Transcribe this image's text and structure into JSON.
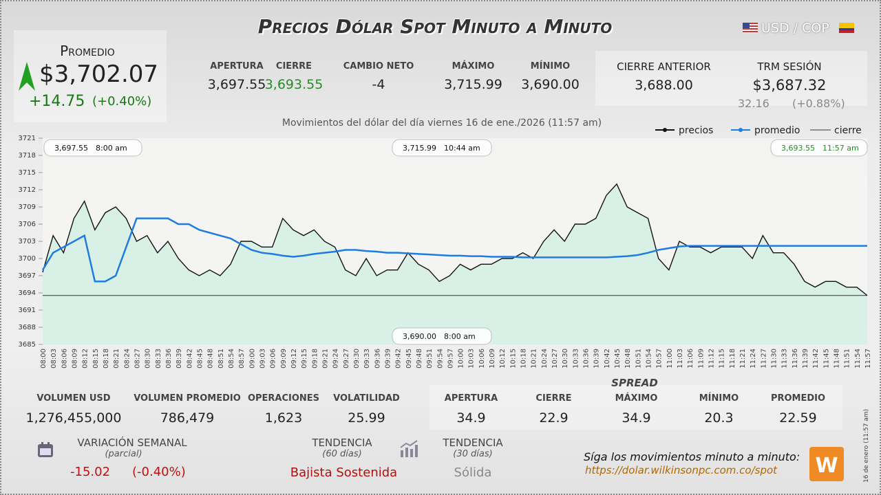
{
  "header": {
    "title": "Precios Dólar Spot Minuto a Minuto",
    "pair": "USD / COP"
  },
  "promedio": {
    "label": "Promedio",
    "value": "$3,702.07",
    "change": "+14.75",
    "pct": "(+0.40%)"
  },
  "stats": [
    {
      "label": "APERTURA",
      "value": "3,697.55"
    },
    {
      "label": "CIERRE",
      "value": "3,693.55"
    },
    {
      "label": "CAMBIO NETO",
      "value": "-4"
    },
    {
      "label": "MÁXIMO",
      "value": "3,715.99"
    },
    {
      "label": "MÍNIMO",
      "value": "3,690.00"
    }
  ],
  "cierre_anterior": {
    "label": "CIERRE ANTERIOR",
    "value": "3,688.00"
  },
  "trm": {
    "label": "TRM SESIÓN",
    "value": "$3,687.32",
    "change": "32.16",
    "pct": "(+0.88%)"
  },
  "chart_data": {
    "type": "line",
    "title": "Movimientos del dólar del día viernes 16 de ene./2026 (11:57 am)",
    "categories": [
      "08:00",
      "08:03",
      "08:06",
      "08:09",
      "08:12",
      "08:15",
      "08:18",
      "08:21",
      "08:24",
      "08:27",
      "08:30",
      "08:33",
      "08:36",
      "08:39",
      "08:42",
      "08:45",
      "08:48",
      "08:51",
      "08:54",
      "08:57",
      "09:00",
      "09:03",
      "09:06",
      "09:09",
      "09:12",
      "09:15",
      "09:18",
      "09:21",
      "09:24",
      "09:27",
      "09:30",
      "09:33",
      "09:36",
      "09:39",
      "09:42",
      "09:45",
      "09:48",
      "09:51",
      "09:54",
      "09:57",
      "10:00",
      "10:03",
      "10:06",
      "10:09",
      "10:12",
      "10:15",
      "10:18",
      "10:21",
      "10:24",
      "10:27",
      "10:30",
      "10:33",
      "10:36",
      "10:39",
      "10:42",
      "10:45",
      "10:48",
      "10:51",
      "10:54",
      "10:57",
      "11:00",
      "11:03",
      "11:06",
      "11:09",
      "11:12",
      "11:15",
      "11:18",
      "11:21",
      "11:24",
      "11:27",
      "11:30",
      "11:33",
      "11:36",
      "11:39",
      "11:42",
      "11:45",
      "11:48",
      "11:51",
      "11:54",
      "11:57"
    ],
    "series": [
      {
        "name": "precios",
        "color": "#111111",
        "values": [
          3697.6,
          3704,
          3701,
          3707,
          3710,
          3705,
          3708,
          3709,
          3707,
          3703,
          3704,
          3701,
          3703,
          3700,
          3698,
          3697,
          3698,
          3697,
          3699,
          3703,
          3703,
          3702,
          3702,
          3707,
          3705,
          3704,
          3705,
          3703,
          3702,
          3698,
          3697,
          3700,
          3697,
          3698,
          3698,
          3701,
          3699,
          3698,
          3696,
          3697,
          3699,
          3698,
          3699,
          3699,
          3700,
          3700,
          3701,
          3700,
          3703,
          3705,
          3703,
          3706,
          3706,
          3707,
          3711,
          3713,
          3709,
          3708,
          3707,
          3700,
          3698,
          3703,
          3702,
          3702,
          3701,
          3702,
          3702,
          3702,
          3700,
          3704,
          3701,
          3701,
          3699,
          3696,
          3695,
          3696,
          3696,
          3695,
          3695,
          3693.55
        ]
      },
      {
        "name": "promedio",
        "color": "#1e7be0",
        "values": [
          3698,
          3701,
          3702,
          3703,
          3704,
          3696,
          3696,
          3697,
          3702,
          3707,
          3707,
          3707,
          3707,
          3706,
          3706,
          3705,
          3704.5,
          3704,
          3703.5,
          3702.5,
          3701.5,
          3701,
          3700.8,
          3700.5,
          3700.3,
          3700.5,
          3700.8,
          3701,
          3701.2,
          3701.5,
          3701.5,
          3701.3,
          3701.2,
          3701,
          3701,
          3700.9,
          3700.8,
          3700.7,
          3700.6,
          3700.5,
          3700.5,
          3700.4,
          3700.4,
          3700.3,
          3700.3,
          3700.3,
          3700.2,
          3700.2,
          3700.2,
          3700.2,
          3700.2,
          3700.2,
          3700.2,
          3700.2,
          3700.2,
          3700.3,
          3700.4,
          3700.6,
          3701,
          3701.5,
          3701.8,
          3702.1,
          3702.2,
          3702.2,
          3702.2,
          3702.2,
          3702.2,
          3702.2,
          3702.2,
          3702.2,
          3702.2,
          3702.2,
          3702.2,
          3702.2,
          3702.2,
          3702.2,
          3702.2,
          3702.2,
          3702.2,
          3702.2
        ]
      }
    ],
    "reference": {
      "name": "cierre",
      "value": 3693.55,
      "color": "#333333"
    },
    "annotations": [
      {
        "price": "3,697.55",
        "time": "8:00 am"
      },
      {
        "price": "3,715.99",
        "time": "10:44 am"
      },
      {
        "price": "3,693.55",
        "time": "11:57 am"
      },
      {
        "price": "3,690.00",
        "time": "8:00 am"
      }
    ],
    "ylim": [
      3685,
      3721
    ],
    "yticks": [
      3685,
      3688,
      3691,
      3694,
      3697,
      3700,
      3703,
      3706,
      3709,
      3712,
      3715,
      3718,
      3721
    ],
    "grid": false
  },
  "volume": [
    {
      "label": "VOLUMEN USD",
      "value": "1,276,455,000"
    },
    {
      "label": "VOLUMEN PROMEDIO",
      "value": "786,479"
    },
    {
      "label": "OPERACIONES",
      "value": "1,623"
    },
    {
      "label": "VOLATILIDAD",
      "value": "25.99"
    }
  ],
  "spread": {
    "title": "SPREAD",
    "items": [
      {
        "label": "APERTURA",
        "value": "34.9"
      },
      {
        "label": "CIERRE",
        "value": "22.9"
      },
      {
        "label": "MÁXIMO",
        "value": "34.9"
      },
      {
        "label": "MÍNIMO",
        "value": "20.3"
      },
      {
        "label": "PROMEDIO",
        "value": "22.59"
      }
    ]
  },
  "weekly": {
    "label": "VARIACIÓN SEMANAL",
    "sub": "(parcial)",
    "value": "-15.02",
    "pct": "(-0.40%)"
  },
  "trend60": {
    "label": "TENDENCIA",
    "sub": "(60 días)",
    "value": "Bajista Sostenida"
  },
  "trend30": {
    "label": "TENDENCIA",
    "sub": "(30 días)",
    "value": "Sólida"
  },
  "cta": {
    "text": "Síga los movimientos minuto a minuto:",
    "url": "https://dolar.wilkinsonpc.com.co/spot"
  },
  "side_note": "16 de enero (11:57 am)"
}
